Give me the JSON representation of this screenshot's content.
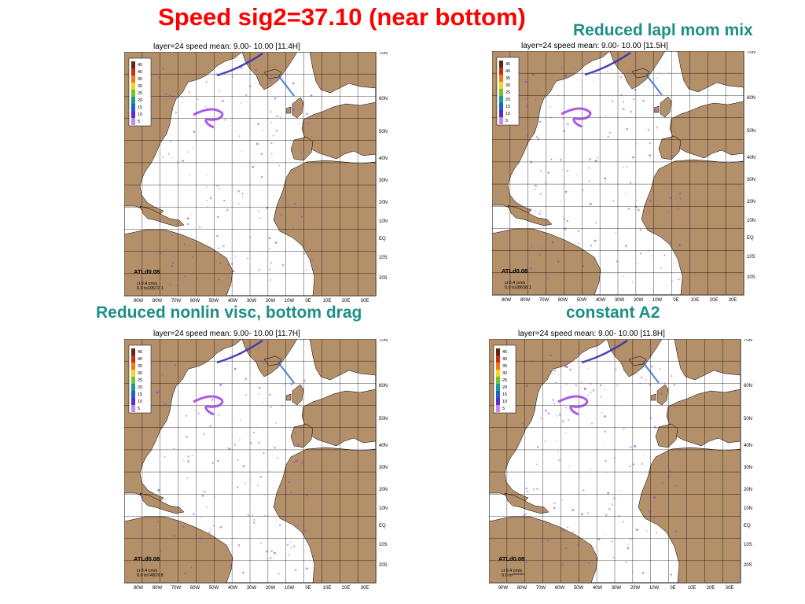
{
  "title": "Speed sig2=37.10 (near bottom)",
  "colors": {
    "title": "#ff0000",
    "caption": "#1e8f86",
    "land": "#b38f6a",
    "ocean": "#ffffff",
    "speed_streak": "#9b3fe0"
  },
  "legend_values": [
    "45",
    "40",
    "35",
    "30",
    "25",
    "20",
    "15",
    "10",
    "5"
  ],
  "legend_colors": [
    "#5a2a0a",
    "#cc2a12",
    "#f07a10",
    "#f6d21a",
    "#6cc23a",
    "#1a9a8c",
    "#1c5fd0",
    "#5a2fc0",
    "#c08af0"
  ],
  "lat_labels": [
    "70N",
    "60N",
    "50N",
    "40N",
    "30N",
    "20N",
    "10N",
    "EQ",
    "10S",
    "20S"
  ],
  "lon_labels": [
    "90W",
    "80W",
    "70W",
    "60W",
    "50W",
    "40W",
    "30W",
    "20W",
    "10W",
    "0E",
    "10E",
    "20E",
    "30E"
  ],
  "panels": [
    {
      "caption": "",
      "header": "layer=24  speed    mean:   9.00-  10.00 [11.4H]",
      "model": "ATLd0.08",
      "ci_line1": "ci  0.4 cm/s",
      "ci_line2": "0.0 to10572.1"
    },
    {
      "caption": "Reduced lapl mom mix",
      "header": "layer=24  speed    mean:   9.00-  10.00 [11.5H]",
      "model": "ATLd0.08",
      "ci_line1": "ci  0.4 cm/s",
      "ci_line2": "0.0 to28638.1"
    },
    {
      "caption": "Reduced nonlin visc, bottom drag",
      "header": "layer=24  speed    mean:   9.00-  10.00 [11.7H]",
      "model": "ATLd0.08",
      "ci_line1": "ci  0.4 cm/s",
      "ci_line2": "0.0 to74823.8"
    },
    {
      "caption": "constant A2",
      "header": "layer=24  speed    mean:   9.00-  10.00 [11.8H]",
      "model": "ATLd0.08",
      "ci_line1": "ci  0.4 cm/s",
      "ci_line2": "0.0 to*******"
    }
  ]
}
